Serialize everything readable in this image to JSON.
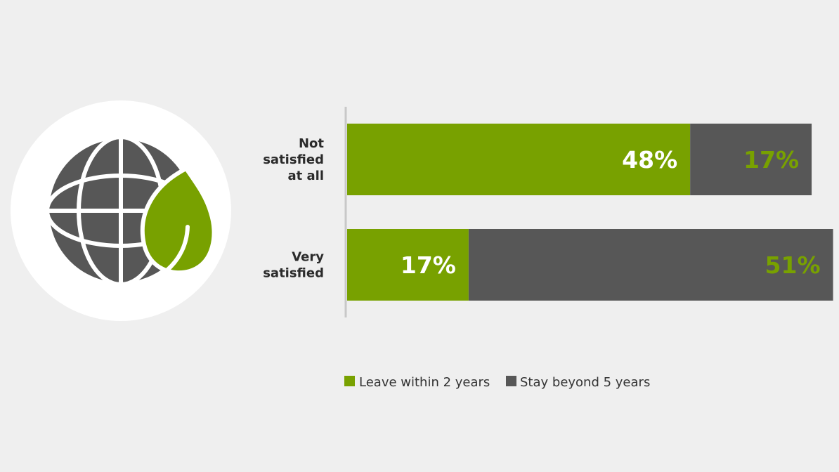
{
  "chart_data": {
    "type": "bar",
    "orientation": "horizontal",
    "stacked": true,
    "title": "",
    "xlabel": "",
    "ylabel": "",
    "xlim": [
      0,
      68
    ],
    "grid": false,
    "legend_position": "bottom",
    "categories": [
      [
        "Not",
        "satisfied",
        "at all"
      ],
      [
        "Very",
        "satisfied"
      ]
    ],
    "series": [
      {
        "name": "Leave within 2 years",
        "values": [
          48,
          17
        ],
        "color": "#78a100",
        "label_color": "#ffffff"
      },
      {
        "name": "Stay beyond 5 years",
        "values": [
          17,
          51
        ],
        "color": "#575757",
        "label_color": "#78a100"
      }
    ]
  },
  "icon": {
    "name": "globe-with-leaf-icon"
  }
}
